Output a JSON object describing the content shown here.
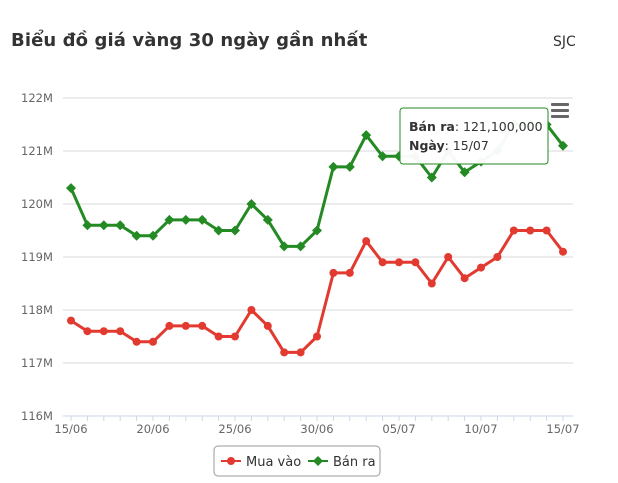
{
  "header": {
    "title": "Biểu đồ giá vàng 30 ngày gần nhất",
    "source": "SJC"
  },
  "colors": {
    "buy": "#e23a30",
    "sell": "#248a24",
    "grid": "#d8d8d8",
    "axis": "#ccd6eb",
    "tick_text": "#666666"
  },
  "tooltip": {
    "series_label": "Bán ra",
    "value": "121,100,000",
    "date_label": "Ngày",
    "date": "15/07",
    "point_index": 30
  },
  "menu": {
    "icon": "hamburger-menu-icon"
  },
  "chart_data": {
    "type": "line",
    "title": "Biểu đồ giá vàng 30 ngày gần nhất",
    "x_ticks": [
      "15/06",
      "20/06",
      "25/06",
      "30/06",
      "05/07",
      "10/07",
      "15/07"
    ],
    "x_tick_indices": [
      0,
      5,
      10,
      15,
      20,
      25,
      30
    ],
    "y_ticks": [
      "116M",
      "117M",
      "118M",
      "119M",
      "120M",
      "121M",
      "122M"
    ],
    "ylim": [
      116,
      122
    ],
    "y_unit": "M",
    "grid": true,
    "legend_position": "bottom-center",
    "x": [
      "15/06",
      "16/06",
      "17/06",
      "18/06",
      "19/06",
      "20/06",
      "21/06",
      "22/06",
      "23/06",
      "24/06",
      "25/06",
      "26/06",
      "27/06",
      "28/06",
      "29/06",
      "30/06",
      "01/07",
      "02/07",
      "03/07",
      "04/07",
      "05/07",
      "06/07",
      "07/07",
      "08/07",
      "09/07",
      "10/07",
      "11/07",
      "12/07",
      "13/07",
      "14/07",
      "15/07"
    ],
    "series": [
      {
        "name": "Mua vào",
        "color": "#e23a30",
        "marker": "circle",
        "values": [
          117.8,
          117.6,
          117.6,
          117.6,
          117.4,
          117.4,
          117.7,
          117.7,
          117.7,
          117.5,
          117.5,
          118.0,
          117.7,
          117.2,
          117.2,
          117.5,
          118.7,
          118.7,
          119.3,
          118.9,
          118.9,
          118.9,
          118.5,
          119.0,
          118.6,
          118.8,
          119.0,
          119.5,
          119.5,
          119.5,
          119.1
        ]
      },
      {
        "name": "Bán ra",
        "color": "#248a24",
        "marker": "diamond",
        "values": [
          120.3,
          119.6,
          119.6,
          119.6,
          119.4,
          119.4,
          119.7,
          119.7,
          119.7,
          119.5,
          119.5,
          120.0,
          119.7,
          119.2,
          119.2,
          119.5,
          120.7,
          120.7,
          121.3,
          120.9,
          120.9,
          120.9,
          120.5,
          121.0,
          120.6,
          120.8,
          121.0,
          121.5,
          121.5,
          121.5,
          121.1
        ]
      }
    ]
  }
}
